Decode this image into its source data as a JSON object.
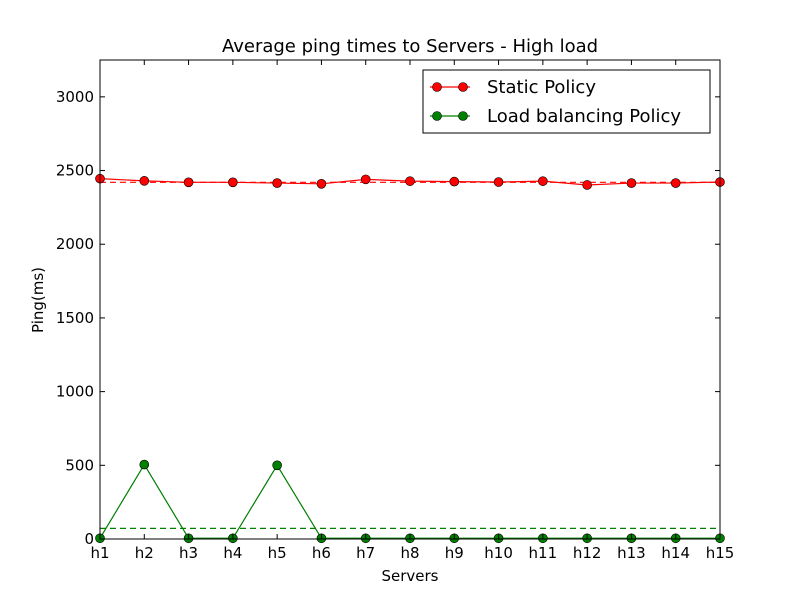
{
  "chart_data": {
    "type": "line",
    "title": "Average ping times to Servers - High load",
    "xlabel": "Servers",
    "ylabel": "Ping(ms)",
    "categories": [
      "h1",
      "h2",
      "h3",
      "h4",
      "h5",
      "h6",
      "h7",
      "h8",
      "h9",
      "h10",
      "h11",
      "h12",
      "h13",
      "h14",
      "h15"
    ],
    "ylim": [
      0,
      3250
    ],
    "yticks": [
      0,
      500,
      1000,
      1500,
      2000,
      2500,
      3000
    ],
    "legend_position": "top-right",
    "grid": false,
    "series": [
      {
        "name": "Static Policy",
        "color": "#ff0000",
        "values": [
          2445,
          2430,
          2420,
          2420,
          2415,
          2410,
          2440,
          2428,
          2425,
          2422,
          2428,
          2402,
          2415,
          2415,
          2422
        ],
        "average": 2420
      },
      {
        "name": "Load balancing Policy",
        "color": "#008000",
        "values": [
          5,
          505,
          5,
          5,
          500,
          5,
          5,
          5,
          5,
          5,
          5,
          5,
          5,
          5,
          5
        ],
        "average": 72
      }
    ]
  }
}
